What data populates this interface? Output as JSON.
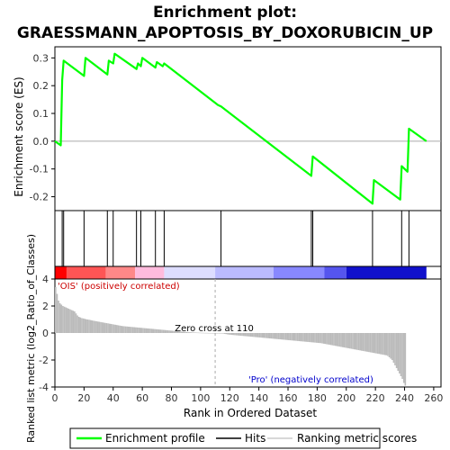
{
  "chart_data": [
    {
      "type": "line",
      "title_line1": "Enrichment plot:",
      "title_line2": "GRAESSMANN_APOPTOSIS_BY_DOXORUBICIN_UP",
      "ylabel": "Enrichment score (ES)",
      "ylim": [
        -0.25,
        0.34
      ],
      "xlim": [
        0,
        265
      ],
      "yticks": [
        -0.2,
        -0.1,
        0.0,
        0.1,
        0.2,
        0.3
      ],
      "ytick_labels": [
        "-0.2",
        "-0.1",
        "0.0",
        "0.1",
        "0.2",
        "0.3"
      ],
      "series": [
        {
          "name": "Enrichment profile",
          "color": "#00ff00",
          "x": [
            0,
            4,
            5,
            6,
            20,
            21,
            36,
            37,
            40,
            41,
            56,
            57,
            59,
            60,
            69,
            70,
            74,
            75,
            112,
            114,
            176,
            177,
            218,
            219,
            237,
            238,
            242,
            243,
            255
          ],
          "y": [
            0.0,
            -0.015,
            0.22,
            0.29,
            0.235,
            0.3,
            0.24,
            0.29,
            0.28,
            0.315,
            0.26,
            0.28,
            0.27,
            0.3,
            0.265,
            0.285,
            0.27,
            0.28,
            0.13,
            0.125,
            -0.125,
            -0.055,
            -0.225,
            -0.14,
            -0.21,
            -0.09,
            -0.11,
            0.045,
            0.0
          ]
        }
      ]
    },
    {
      "type": "hits",
      "hits": [
        5,
        6,
        20,
        36,
        40,
        56,
        59,
        69,
        75,
        114,
        176,
        177,
        218,
        238,
        243
      ],
      "color": "#000000"
    },
    {
      "type": "heatmap",
      "xlim": [
        0,
        265
      ],
      "rank_min": 0,
      "rank_max": 255,
      "colors": [
        "#ff0000",
        "#ff5555",
        "#ff8888",
        "#ffbbdd",
        "#ddddff",
        "#bbbbff",
        "#8888ff",
        "#5555ee",
        "#1111cc"
      ],
      "label_pos": "'OIS' (positively correlated)",
      "label_neg": "'Pro' (negatively correlated)",
      "pos_color": "#cc0000",
      "neg_color": "#0000cc"
    },
    {
      "type": "bar",
      "ylabel": "Ranked list metric (log2_Ratio_of_Classes)",
      "xlabel": "Rank in Ordered Dataset",
      "ylim": [
        -4,
        4
      ],
      "xlim": [
        0,
        265
      ],
      "yticks": [
        -4,
        -2,
        0,
        2,
        4
      ],
      "ytick_labels": [
        "-4",
        "-2",
        "0",
        "2",
        "4"
      ],
      "xticks": [
        0,
        20,
        40,
        60,
        80,
        100,
        120,
        140,
        160,
        180,
        200,
        220,
        240,
        260
      ],
      "xtick_labels": [
        "0",
        "20",
        "40",
        "60",
        "80",
        "100",
        "120",
        "140",
        "160",
        "180",
        "200",
        "220",
        "240",
        "260"
      ],
      "zero_cross_rank": 110,
      "zero_cross_label": "Zero cross at 110",
      "values": [
        3.4,
        2.9,
        2.4,
        2.2,
        2.1,
        2.0,
        1.95,
        1.9,
        1.85,
        1.8,
        1.75,
        1.7,
        1.65,
        1.6,
        1.45,
        1.3,
        1.2,
        1.15,
        1.1,
        1.08,
        1.05,
        1.02,
        1.0,
        0.98,
        0.96,
        0.93,
        0.91,
        0.89,
        0.87,
        0.85,
        0.83,
        0.81,
        0.79,
        0.77,
        0.75,
        0.73,
        0.71,
        0.69,
        0.67,
        0.65,
        0.63,
        0.61,
        0.59,
        0.57,
        0.55,
        0.53,
        0.51,
        0.5,
        0.49,
        0.48,
        0.47,
        0.46,
        0.45,
        0.44,
        0.43,
        0.42,
        0.41,
        0.4,
        0.39,
        0.38,
        0.37,
        0.36,
        0.35,
        0.34,
        0.33,
        0.32,
        0.31,
        0.3,
        0.29,
        0.28,
        0.27,
        0.26,
        0.25,
        0.24,
        0.23,
        0.22,
        0.21,
        0.2,
        0.19,
        0.18,
        0.17,
        0.16,
        0.15,
        0.14,
        0.13,
        0.12,
        0.11,
        0.1,
        0.09,
        0.08,
        0.07,
        0.06,
        0.055,
        0.05,
        0.045,
        0.04,
        0.035,
        0.03,
        0.026,
        0.022,
        0.018,
        0.015,
        0.012,
        0.009,
        0.007,
        0.005,
        0.003,
        0.002,
        0.001,
        0.0005,
        -0.0005,
        -0.002,
        -0.005,
        -0.01,
        -0.02,
        -0.04,
        -0.06,
        -0.08,
        -0.1,
        -0.12,
        -0.13,
        -0.14,
        -0.15,
        -0.16,
        -0.17,
        -0.18,
        -0.19,
        -0.2,
        -0.21,
        -0.22,
        -0.23,
        -0.24,
        -0.25,
        -0.26,
        -0.27,
        -0.28,
        -0.29,
        -0.3,
        -0.31,
        -0.32,
        -0.33,
        -0.34,
        -0.35,
        -0.36,
        -0.37,
        -0.38,
        -0.39,
        -0.4,
        -0.41,
        -0.42,
        -0.43,
        -0.44,
        -0.45,
        -0.46,
        -0.47,
        -0.48,
        -0.49,
        -0.5,
        -0.51,
        -0.52,
        -0.53,
        -0.54,
        -0.55,
        -0.56,
        -0.57,
        -0.58,
        -0.59,
        -0.6,
        -0.61,
        -0.62,
        -0.63,
        -0.64,
        -0.65,
        -0.66,
        -0.67,
        -0.68,
        -0.69,
        -0.7,
        -0.71,
        -0.72,
        -0.73,
        -0.74,
        -0.75,
        -0.77,
        -0.79,
        -0.81,
        -0.83,
        -0.85,
        -0.87,
        -0.89,
        -0.91,
        -0.93,
        -0.95,
        -0.97,
        -0.99,
        -1.01,
        -1.03,
        -1.05,
        -1.07,
        -1.09,
        -1.11,
        -1.13,
        -1.15,
        -1.17,
        -1.19,
        -1.21,
        -1.23,
        -1.25,
        -1.27,
        -1.29,
        -1.31,
        -1.33,
        -1.35,
        -1.37,
        -1.39,
        -1.41,
        -1.43,
        -1.45,
        -1.47,
        -1.49,
        -1.51,
        -1.53,
        -1.55,
        -1.57,
        -1.59,
        -1.61,
        -1.63,
        -1.65,
        -1.7,
        -1.8,
        -1.9,
        -2.0,
        -2.2,
        -2.4,
        -2.6,
        -2.8,
        -3.0,
        -3.2,
        -3.4,
        -3.7,
        -3.9
      ]
    }
  ],
  "legend": {
    "items": [
      {
        "label": "Enrichment profile",
        "color": "#00ff00",
        "kind": "line"
      },
      {
        "label": "Hits",
        "color": "#000000",
        "kind": "line"
      },
      {
        "label": "Ranking metric scores",
        "color": "#cccccc",
        "kind": "line"
      }
    ]
  }
}
